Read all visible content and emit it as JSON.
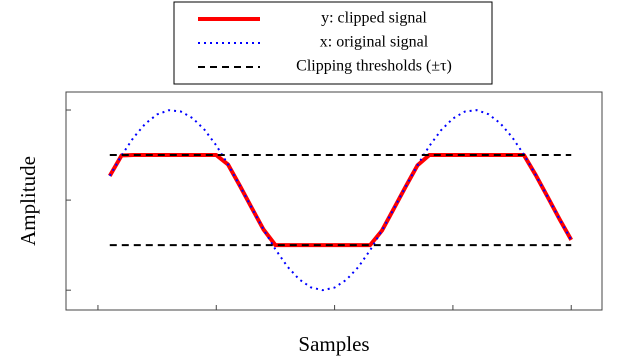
{
  "chart_data": {
    "type": "line",
    "xlabel": "Samples",
    "ylabel": "Amplitude",
    "x": [
      10,
      20,
      30,
      40,
      50,
      60,
      70,
      80,
      90,
      100,
      110,
      120,
      130,
      140,
      150,
      160,
      170,
      180,
      190,
      200,
      210,
      220,
      230,
      240,
      250,
      260,
      270,
      280,
      290,
      300,
      310,
      320,
      330,
      340,
      350,
      360,
      370,
      380,
      390,
      400
    ],
    "series": [
      {
        "name": "y: clipped signal",
        "color": "#ff0000",
        "style": "solid",
        "values": [
          0.269,
          0.496,
          0.5,
          0.5,
          0.5,
          0.5,
          0.5,
          0.5,
          0.5,
          0.5,
          0.394,
          0.158,
          -0.087,
          -0.328,
          -0.5,
          -0.5,
          -0.5,
          -0.5,
          -0.5,
          -0.5,
          -0.5,
          -0.5,
          -0.5,
          -0.339,
          -0.097,
          0.148,
          0.385,
          0.5,
          0.5,
          0.5,
          0.5,
          0.5,
          0.5,
          0.5,
          0.5,
          0.5,
          0.278,
          0.036,
          -0.209,
          -0.442
        ]
      },
      {
        "name": "x: original signal",
        "color": "#0000ff",
        "style": "dotted",
        "values": [
          0.269,
          0.496,
          0.693,
          0.848,
          0.951,
          0.998,
          0.984,
          0.91,
          0.782,
          0.607,
          0.394,
          0.158,
          -0.087,
          -0.328,
          -0.547,
          -0.736,
          -0.879,
          -0.969,
          -1.0,
          -0.971,
          -0.884,
          -0.744,
          -0.557,
          -0.339,
          -0.097,
          0.148,
          0.385,
          0.599,
          0.776,
          0.906,
          0.982,
          0.999,
          0.954,
          0.853,
          0.7,
          0.505,
          0.278,
          0.036,
          -0.209,
          -0.442
        ]
      }
    ],
    "thresholds": {
      "name": "Clipping thresholds (±τ)",
      "color": "#000000",
      "style": "dashed",
      "values": [
        0.5,
        -0.5
      ]
    },
    "xlim": [
      -27,
      426
    ],
    "ylim": [
      -1.22,
      1.2
    ],
    "xticks": [
      0,
      100,
      200,
      300,
      400
    ],
    "yticks": [
      -1,
      0,
      1
    ],
    "legend": "top"
  }
}
